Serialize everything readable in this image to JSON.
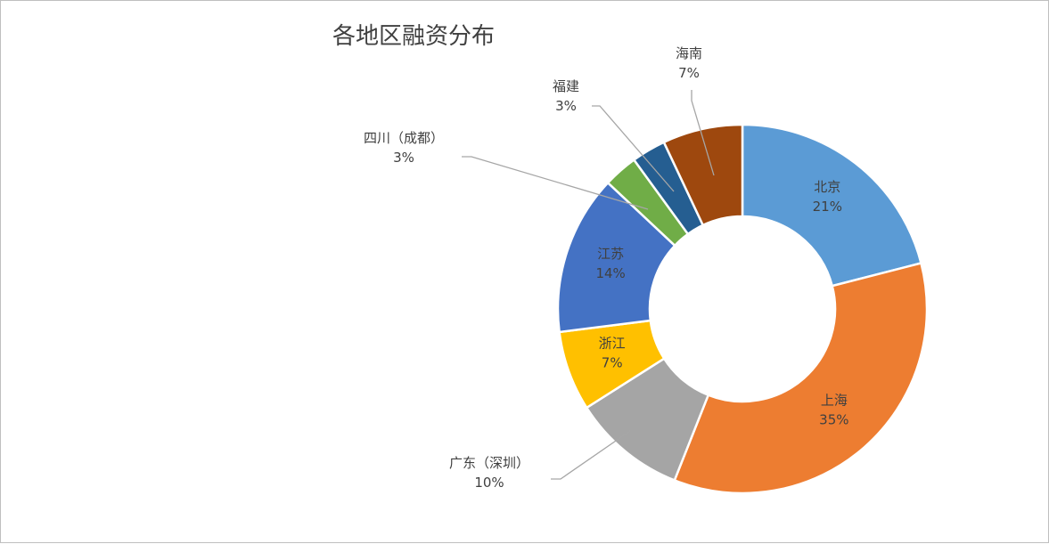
{
  "chart_data": {
    "type": "pie",
    "variant": "donut",
    "title": "各地区融资分布",
    "legend": "none",
    "slices": [
      {
        "label": "北京",
        "value": 21,
        "value_label": "21%",
        "color": "#5b9bd5"
      },
      {
        "label": "上海",
        "value": 35,
        "value_label": "35%",
        "color": "#ed7d31"
      },
      {
        "label": "广东（深圳）",
        "value": 10,
        "value_label": "10%",
        "color": "#a5a5a5"
      },
      {
        "label": "浙江",
        "value": 7,
        "value_label": "7%",
        "color": "#ffc000"
      },
      {
        "label": "江苏",
        "value": 14,
        "value_label": "14%",
        "color": "#4472c4"
      },
      {
        "label": "四川（成都）",
        "value": 3,
        "value_label": "3%",
        "color": "#70ad47"
      },
      {
        "label": "福建",
        "value": 3,
        "value_label": "3%",
        "color": "#255e91"
      },
      {
        "label": "海南",
        "value": 7,
        "value_label": "7%",
        "color": "#9e480e"
      }
    ]
  }
}
